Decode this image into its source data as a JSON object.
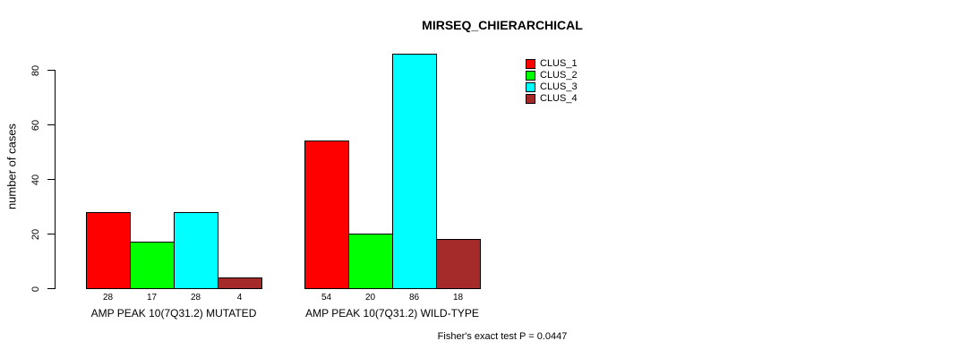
{
  "chart_data": {
    "type": "bar",
    "title": "MIRSEQ_CHIERARCHICAL",
    "xlabel": "",
    "ylabel": "number of cases",
    "ylim": [
      0,
      80
    ],
    "yticks": [
      0,
      20,
      40,
      60,
      80
    ],
    "grid": false,
    "legend_position": "top-right",
    "categories": [
      "AMP PEAK 10(7Q31.2) MUTATED",
      "AMP PEAK 10(7Q31.2) WILD-TYPE"
    ],
    "series": [
      {
        "name": "CLUS_1",
        "color": "#FF0000",
        "values": [
          28,
          54
        ]
      },
      {
        "name": "CLUS_2",
        "color": "#00FF00",
        "values": [
          17,
          20
        ]
      },
      {
        "name": "CLUS_3",
        "color": "#00FFFF",
        "values": [
          28,
          86
        ]
      },
      {
        "name": "CLUS_4",
        "color": "#A52A2A",
        "values": [
          4,
          18
        ]
      }
    ],
    "bar_value_labels_shown": true,
    "annotation": "Fisher's exact test P = 0.0447"
  },
  "colors": {
    "background": "#FFFFFF",
    "axis": "#000000",
    "bar_border": "#000000",
    "text": "#000000"
  }
}
